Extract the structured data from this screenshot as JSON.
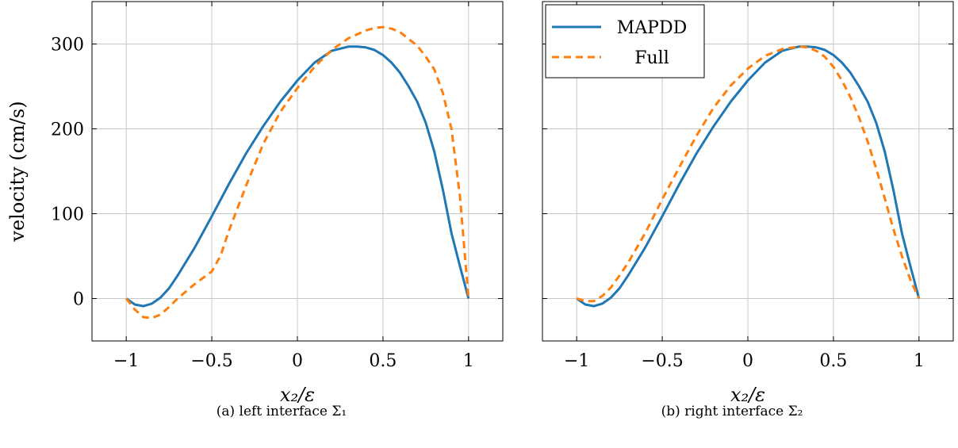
{
  "legend": [
    {
      "name": "MAPDD",
      "color": "#1f77b4",
      "dash": "solid"
    },
    {
      "name": "Full",
      "color": "#ff7f0e",
      "dash": "dashed"
    }
  ],
  "chart_data": [
    {
      "type": "line",
      "caption": "(a) left interface Σ₁",
      "xlabel": "x₂/ε",
      "ylabel": "velocity (cm/s)",
      "xlim": [
        -1.2,
        1.2
      ],
      "ylim": [
        -50,
        350
      ],
      "xticks": [
        -1,
        -0.5,
        0,
        0.5,
        1
      ],
      "xtick_labels": [
        "−1",
        "−0.5",
        "0",
        "0.5",
        "1"
      ],
      "yticks": [
        0,
        100,
        200,
        300
      ],
      "ytick_labels": [
        "0",
        "100",
        "200",
        "300"
      ],
      "grid": true,
      "legend_position": "none",
      "series": [
        {
          "name": "MAPDD",
          "x": [
            -1,
            -0.95,
            -0.9,
            -0.85,
            -0.8,
            -0.75,
            -0.7,
            -0.6,
            -0.5,
            -0.4,
            -0.3,
            -0.2,
            -0.1,
            0,
            0.1,
            0.2,
            0.3,
            0.35,
            0.4,
            0.45,
            0.5,
            0.55,
            0.6,
            0.65,
            0.7,
            0.75,
            0.8,
            0.85,
            0.9,
            0.95,
            1
          ],
          "y": [
            0,
            -7,
            -9,
            -6,
            1,
            12,
            27,
            60,
            97,
            135,
            171,
            203,
            232,
            257,
            278,
            292,
            297,
            297,
            296,
            293,
            287,
            278,
            266,
            250,
            232,
            207,
            173,
            128,
            77,
            38,
            0
          ]
        },
        {
          "name": "Full",
          "x": [
            -1,
            -0.95,
            -0.9,
            -0.85,
            -0.8,
            -0.75,
            -0.7,
            -0.6,
            -0.5,
            -0.45,
            -0.4,
            -0.3,
            -0.2,
            -0.1,
            0,
            0.1,
            0.2,
            0.3,
            0.4,
            0.45,
            0.5,
            0.55,
            0.6,
            0.65,
            0.7,
            0.75,
            0.8,
            0.85,
            0.9,
            0.95,
            1
          ],
          "y": [
            0,
            -13,
            -22,
            -23,
            -19,
            -10,
            0,
            17,
            32,
            50,
            80,
            133,
            182,
            220,
            248,
            273,
            293,
            307,
            316,
            319,
            320,
            318,
            314,
            306,
            298,
            285,
            270,
            242,
            200,
            120,
            0
          ]
        }
      ]
    },
    {
      "type": "line",
      "caption": "(b) right interface Σ₂",
      "xlabel": "x₂/ε",
      "ylabel": "",
      "xlim": [
        -1.2,
        1.2
      ],
      "ylim": [
        -50,
        350
      ],
      "xticks": [
        -1,
        -0.5,
        0,
        0.5,
        1
      ],
      "xtick_labels": [
        "−1",
        "−0.5",
        "0",
        "0.5",
        "1"
      ],
      "yticks": [
        0,
        100,
        200,
        300
      ],
      "ytick_labels": [
        "",
        "",
        "",
        ""
      ],
      "grid": true,
      "legend_position": "top-left",
      "series": [
        {
          "name": "MAPDD",
          "x": [
            -1,
            -0.95,
            -0.9,
            -0.85,
            -0.8,
            -0.75,
            -0.7,
            -0.6,
            -0.5,
            -0.4,
            -0.3,
            -0.2,
            -0.1,
            0,
            0.1,
            0.2,
            0.3,
            0.35,
            0.4,
            0.45,
            0.5,
            0.55,
            0.6,
            0.65,
            0.7,
            0.75,
            0.8,
            0.85,
            0.9,
            0.95,
            1
          ],
          "y": [
            0,
            -7,
            -9,
            -6,
            1,
            12,
            27,
            60,
            97,
            135,
            171,
            203,
            232,
            257,
            278,
            292,
            297,
            297,
            296,
            293,
            287,
            278,
            266,
            250,
            232,
            207,
            173,
            128,
            77,
            38,
            0
          ]
        },
        {
          "name": "Full",
          "x": [
            -1,
            -0.95,
            -0.9,
            -0.85,
            -0.8,
            -0.75,
            -0.7,
            -0.6,
            -0.5,
            -0.4,
            -0.3,
            -0.2,
            -0.1,
            0,
            0.1,
            0.2,
            0.3,
            0.35,
            0.4,
            0.45,
            0.5,
            0.55,
            0.6,
            0.65,
            0.7,
            0.75,
            0.8,
            0.85,
            0.9,
            0.95,
            1
          ],
          "y": [
            0,
            -3,
            -3,
            3,
            13,
            27,
            42,
            77,
            117,
            155,
            192,
            225,
            251,
            271,
            286,
            294,
            297,
            296,
            292,
            285,
            273,
            257,
            237,
            213,
            185,
            153,
            118,
            82,
            50,
            22,
            0
          ]
        }
      ]
    }
  ]
}
